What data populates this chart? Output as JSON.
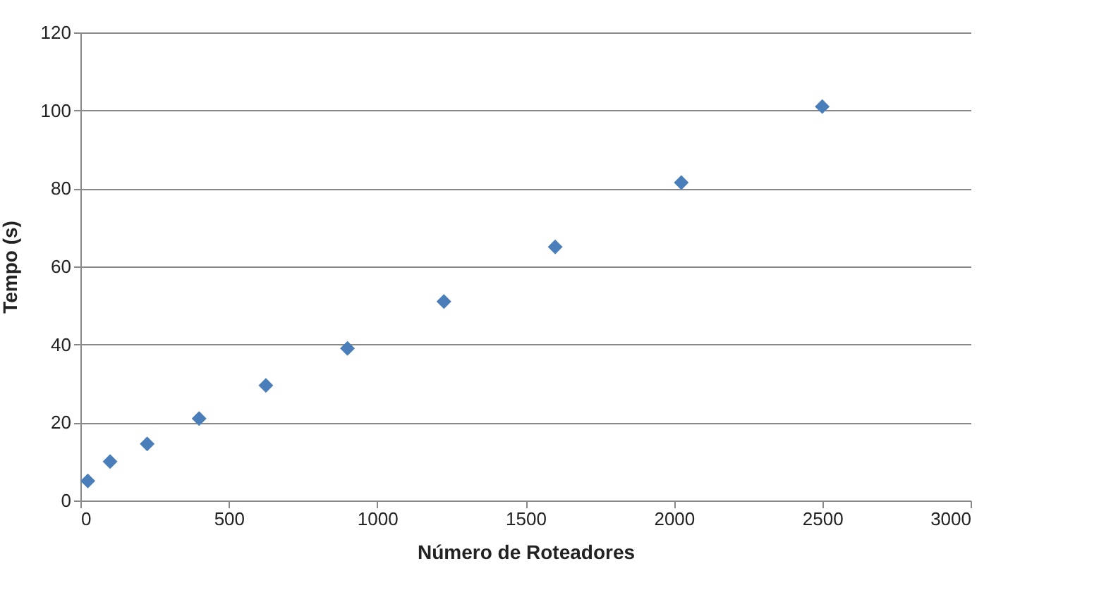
{
  "chart_data": {
    "type": "scatter",
    "xlabel": "Número de Roteadores",
    "ylabel": "Tempo (s)",
    "x": [
      25,
      100,
      225,
      400,
      625,
      900,
      1225,
      1600,
      2025,
      2500
    ],
    "series": [
      {
        "color": "#4a7ebb",
        "values": [
          5,
          10,
          14.5,
          21,
          29.5,
          39,
          51,
          65,
          81.5,
          101
        ]
      }
    ],
    "xlim": [
      0,
      3000
    ],
    "xticks": [
      0,
      500,
      1000,
      1500,
      2000,
      2500,
      3000
    ],
    "ylim": [
      0,
      120
    ],
    "yticks": [
      0,
      20,
      40,
      60,
      80,
      100,
      120
    ],
    "grid": "y",
    "marker": "diamond"
  }
}
